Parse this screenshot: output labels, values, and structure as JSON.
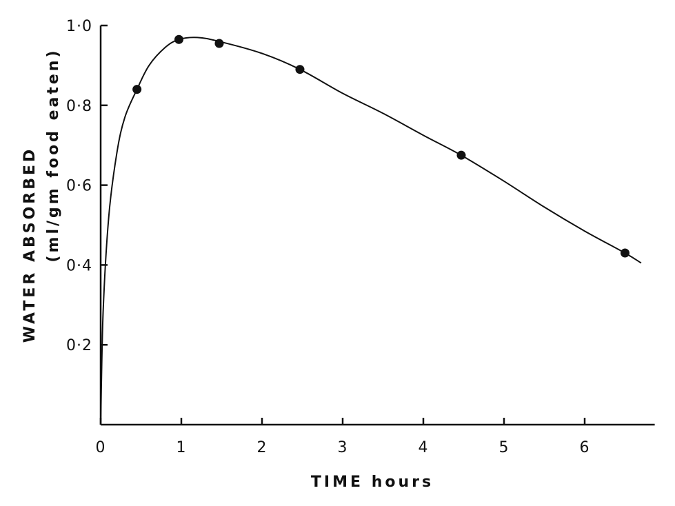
{
  "chart_data": {
    "type": "line",
    "xlabel": "TIME hours",
    "ylabel_line1": "WATER ABSORBED",
    "ylabel_line2": "(ml/gm food eaten)",
    "xlim": [
      0,
      6.8
    ],
    "ylim": [
      0,
      1.0
    ],
    "x_ticks": [
      0,
      1,
      2,
      3,
      4,
      5,
      6
    ],
    "x_tick_labels": [
      "0",
      "1",
      "2",
      "3",
      "4",
      "5",
      "6"
    ],
    "y_ticks": [
      0.2,
      0.4,
      0.6,
      0.8,
      1.0
    ],
    "y_tick_labels": [
      "0·2",
      "0·4",
      "0·6",
      "0·8",
      "1·0"
    ],
    "series": [
      {
        "points": [
          {
            "x": 0.45,
            "y": 0.84
          },
          {
            "x": 0.97,
            "y": 0.965
          },
          {
            "x": 1.47,
            "y": 0.955
          },
          {
            "x": 2.47,
            "y": 0.89
          },
          {
            "x": 4.47,
            "y": 0.675
          },
          {
            "x": 6.5,
            "y": 0.43
          }
        ],
        "curve": [
          {
            "x": 0.0,
            "y": 0.0
          },
          {
            "x": 0.03,
            "y": 0.28
          },
          {
            "x": 0.1,
            "y": 0.52
          },
          {
            "x": 0.2,
            "y": 0.68
          },
          {
            "x": 0.3,
            "y": 0.77
          },
          {
            "x": 0.45,
            "y": 0.84
          },
          {
            "x": 0.6,
            "y": 0.9
          },
          {
            "x": 0.8,
            "y": 0.945
          },
          {
            "x": 0.97,
            "y": 0.965
          },
          {
            "x": 1.2,
            "y": 0.97
          },
          {
            "x": 1.47,
            "y": 0.96
          },
          {
            "x": 2.0,
            "y": 0.93
          },
          {
            "x": 2.47,
            "y": 0.89
          },
          {
            "x": 3.0,
            "y": 0.83
          },
          {
            "x": 3.5,
            "y": 0.78
          },
          {
            "x": 4.0,
            "y": 0.725
          },
          {
            "x": 4.47,
            "y": 0.675
          },
          {
            "x": 5.0,
            "y": 0.61
          },
          {
            "x": 5.5,
            "y": 0.545
          },
          {
            "x": 6.0,
            "y": 0.485
          },
          {
            "x": 6.5,
            "y": 0.43
          },
          {
            "x": 6.7,
            "y": 0.405
          }
        ]
      }
    ],
    "grid": false,
    "legend": "none"
  }
}
